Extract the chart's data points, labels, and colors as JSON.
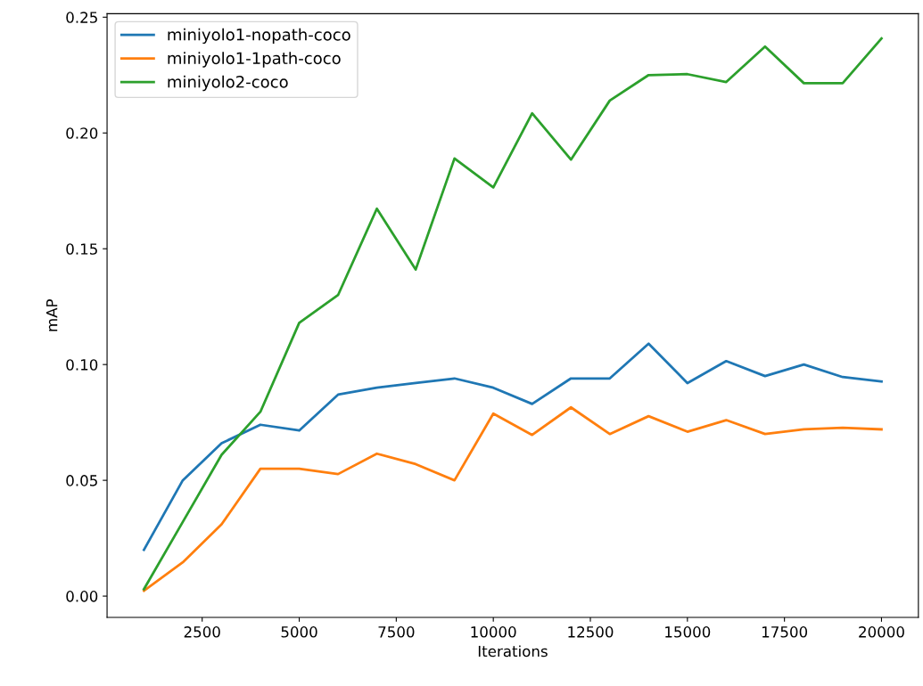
{
  "chart_data": {
    "type": "line",
    "xlabel": "Iterations",
    "ylabel": "mAP",
    "x": [
      1000,
      2000,
      3000,
      4000,
      5000,
      6000,
      7000,
      8000,
      9000,
      10000,
      11000,
      12000,
      13000,
      14000,
      15000,
      16000,
      17000,
      18000,
      19000,
      20000
    ],
    "series": [
      {
        "name": "miniyolo1-nopath-coco",
        "color": "#1f77b4",
        "values": [
          0.02,
          0.05,
          0.066,
          0.074,
          0.0715,
          0.087,
          0.09,
          0.092,
          0.094,
          0.09,
          0.083,
          0.094,
          0.094,
          0.109,
          0.092,
          0.1015,
          0.095,
          0.1,
          0.0946,
          0.0927
        ]
      },
      {
        "name": "miniyolo1-1path-coco",
        "color": "#ff7f0e",
        "values": [
          0.0023,
          0.0146,
          0.031,
          0.055,
          0.055,
          0.0527,
          0.0615,
          0.057,
          0.05,
          0.0788,
          0.0696,
          0.0815,
          0.07,
          0.0777,
          0.071,
          0.076,
          0.07,
          0.072,
          0.0727,
          0.072
        ]
      },
      {
        "name": "miniyolo2-coco",
        "color": "#2ca02c",
        "values": [
          0.003,
          0.032,
          0.061,
          0.0796,
          0.118,
          0.13,
          0.1673,
          0.141,
          0.189,
          0.1765,
          0.2085,
          0.1885,
          0.214,
          0.225,
          0.2254,
          0.222,
          0.2373,
          0.2215,
          0.2215,
          0.2408
        ]
      }
    ],
    "xlim": [
      50,
      20950
    ],
    "ylim": [
      -0.0092,
      0.2515
    ],
    "xticks": [
      2500,
      5000,
      7500,
      10000,
      12500,
      15000,
      17500,
      20000
    ],
    "yticks": [
      {
        "value": 0,
        "label": "0.00"
      },
      {
        "value": 0.05,
        "label": "0.05"
      },
      {
        "value": 0.1,
        "label": "0.10"
      },
      {
        "value": 0.15,
        "label": "0.15"
      },
      {
        "value": 0.2,
        "label": "0.20"
      },
      {
        "value": 0.25,
        "label": "0.25"
      }
    ],
    "legend": "top left",
    "grid": false,
    "marker": "none",
    "line_style": "solid"
  }
}
